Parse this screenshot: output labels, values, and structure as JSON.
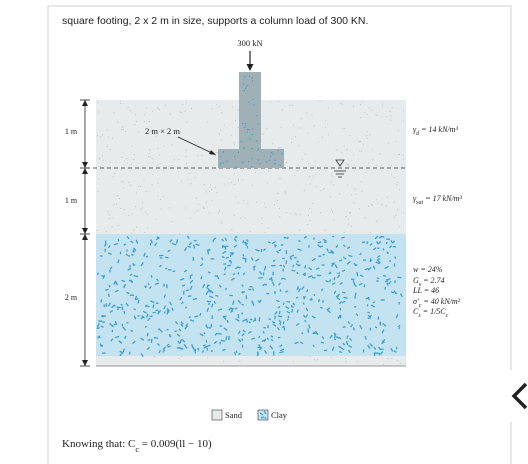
{
  "problem_text": "square footing, 2 x 2 m in size, supports a column load of 300 KN.",
  "figure": {
    "load_label": "300 kN",
    "footing_label": "2 m × 2 m",
    "depth_labels": [
      "1 m",
      "1 m",
      "2 m"
    ],
    "properties": [
      [
        {
          "text": "γ"
        },
        {
          "text": "d",
          "sub": true
        },
        {
          "text": " = 14 kN/m³"
        }
      ],
      [
        {
          "text": "γ"
        },
        {
          "text": "sat",
          "sub": true
        },
        {
          "text": " = 17 kN/m³"
        }
      ],
      [
        {
          "text": "w = 24%"
        }
      ],
      [
        {
          "text": "G"
        },
        {
          "text": "s",
          "sub": true
        },
        {
          "text": " = 2.74"
        }
      ],
      [
        {
          "text": "LL = 46"
        }
      ],
      [
        {
          "text": "σ′"
        },
        {
          "text": "c",
          "sub": true
        },
        {
          "text": " = 40 kN/m²"
        }
      ],
      [
        {
          "text": "C"
        },
        {
          "text": "s",
          "sub": true
        },
        {
          "text": " = 1/5C"
        },
        {
          "text": "c",
          "sub": true
        }
      ]
    ],
    "legend": [
      "Sand",
      "Clay"
    ]
  },
  "footer": [
    {
      "text": "Knowing that:  C"
    },
    {
      "text": "c",
      "sub": true
    },
    {
      "text": " = 0.009(ll − 10)"
    }
  ]
}
